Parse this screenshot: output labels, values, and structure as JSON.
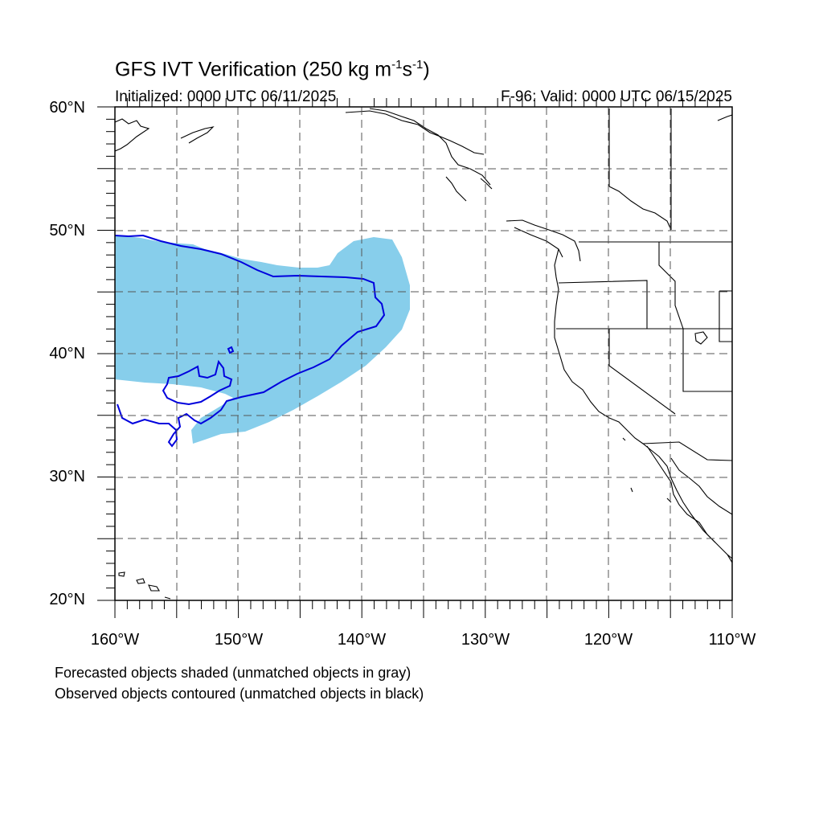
{
  "title_main": "GFS IVT Verification (250 kg m",
  "title_exp1": "-1",
  "title_mid": "s",
  "title_exp2": "-1",
  "title_end": ")",
  "initialized": "Initialized: 0000 UTC 06/11/2025",
  "valid": "F-96: Valid: 0000 UTC 06/15/2025",
  "lat_labels": [
    "60°N",
    "50°N",
    "40°N",
    "30°N",
    "20°N"
  ],
  "lon_labels": [
    "160°W",
    "150°W",
    "140°W",
    "130°W",
    "120°W",
    "110°W"
  ],
  "note_forecast": "Forecasted objects shaded (unmatched objects in gray)",
  "note_observed": "Observed objects contoured (unmatched objects in black)",
  "colors": {
    "forecast_fill": "#87ceeb",
    "observed_contour": "#0000dd",
    "coastline": "#000000"
  },
  "map_extent": {
    "lon_min": -160,
    "lon_max": -110,
    "lat_min": 20,
    "lat_max": 60
  }
}
